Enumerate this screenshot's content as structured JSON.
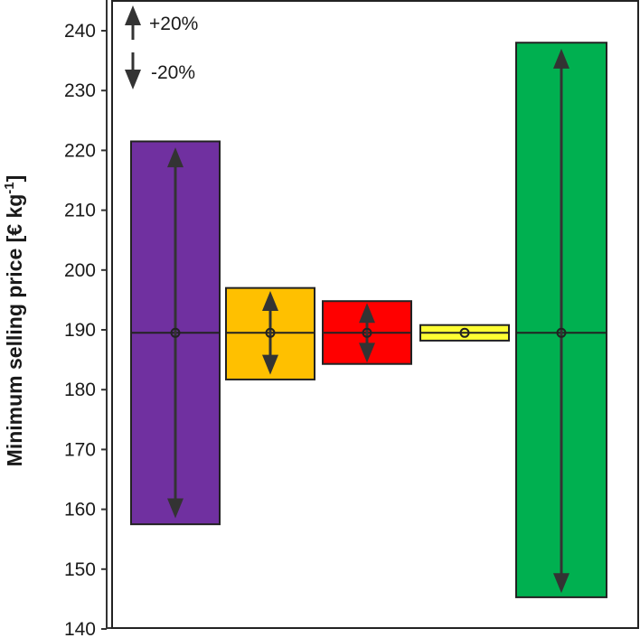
{
  "chart_data": {
    "type": "bar",
    "ylabel": "Minimum selling price [€ kg",
    "ylabel_sup": "-1",
    "ylabel_close": "]",
    "ylim": [
      140,
      245
    ],
    "yticks": [
      140,
      150,
      160,
      170,
      180,
      190,
      200,
      210,
      220,
      230,
      240
    ],
    "baseline": 189.5,
    "grid": false,
    "legend": {
      "placement": "top-left",
      "entries": [
        {
          "label": "+20%",
          "direction": "up"
        },
        {
          "label": "-20%",
          "direction": "down"
        }
      ]
    },
    "series": [
      {
        "color": "#7030A0",
        "high": 221.5,
        "low": 157.5,
        "arrow_top": 220.5,
        "arrow_bottom": 158.5
      },
      {
        "color": "#FFC000",
        "high": 197.0,
        "low": 181.7,
        "arrow_top": 196.5,
        "arrow_bottom": 182.5
      },
      {
        "color": "#FF0000",
        "high": 194.8,
        "low": 184.3,
        "arrow_top": 194.5,
        "arrow_bottom": 184.5
      },
      {
        "color": "#FFFF33",
        "high": 190.8,
        "low": 188.2,
        "arrow_top": null,
        "arrow_bottom": null
      },
      {
        "color": "#00B050",
        "high": 238.0,
        "low": 145.3,
        "arrow_top": 237.0,
        "arrow_bottom": 146.0
      }
    ]
  }
}
